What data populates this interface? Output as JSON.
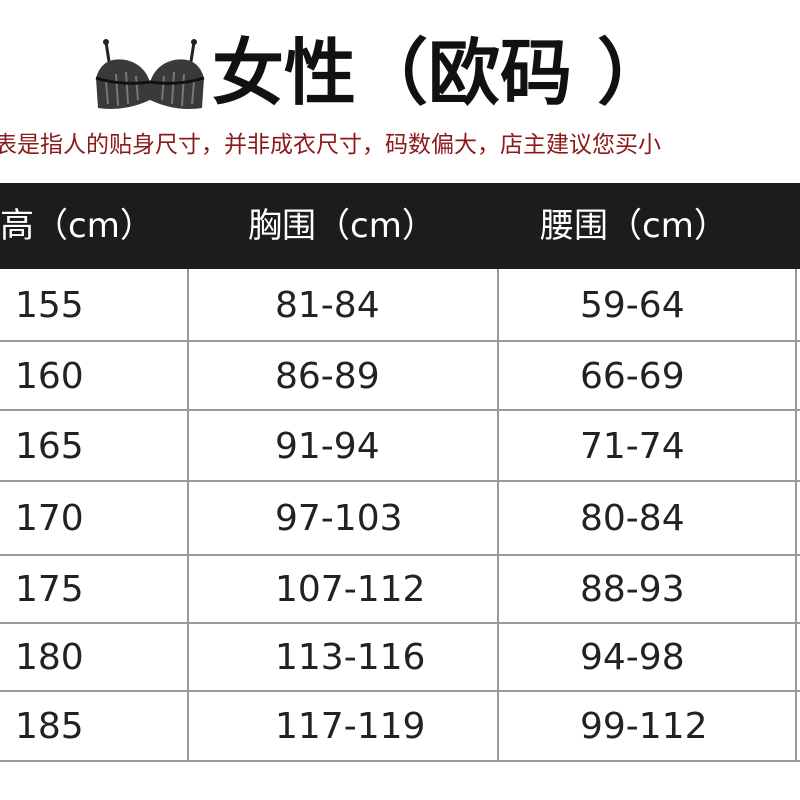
{
  "header": {
    "title": "女性（欧码 ）",
    "subtitle": "表是指人的贴身尺寸，并非成衣尺寸，码数偏大，店主建议您买小"
  },
  "table": {
    "columns": [
      "高（cm）",
      "胸围（cm）",
      "腰围（cm）"
    ],
    "rows": [
      [
        "155",
        "81-84",
        "59-64"
      ],
      [
        "160",
        "86-89",
        "66-69"
      ],
      [
        "165",
        "91-94",
        "71-74"
      ],
      [
        "170",
        "97-103",
        "80-84"
      ],
      [
        "175",
        "107-112",
        "88-93"
      ],
      [
        "180",
        "113-116",
        "94-98"
      ],
      [
        "185",
        "117-119",
        "99-112"
      ]
    ]
  }
}
